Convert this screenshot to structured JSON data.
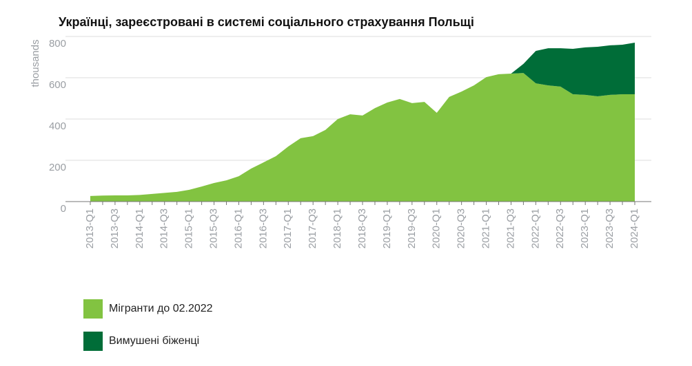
{
  "chart_data": {
    "type": "stacked_area",
    "title": "Українці, зареєстровані в системі соціального страхування Польщі",
    "y_label": "thousands",
    "categories": [
      "2013-Q1",
      null,
      "2013-Q3",
      null,
      "2014-Q1",
      null,
      "2014-Q3",
      null,
      "2015-Q1",
      null,
      "2015-Q3",
      null,
      "2016-Q1",
      null,
      "2016-Q3",
      null,
      "2017-Q1",
      null,
      "2017-Q3",
      null,
      "2018-Q1",
      null,
      "2018-Q3",
      null,
      "2019-Q1",
      null,
      "2019-Q3",
      null,
      "2020-Q1",
      null,
      "2020-Q3",
      null,
      "2021-Q1",
      null,
      "2021-Q3",
      null,
      "2022-Q1",
      null,
      "2022-Q3",
      null,
      "2023-Q1",
      null,
      "2023-Q3",
      null,
      "2024-Q1"
    ],
    "series": [
      {
        "name": "Мігранти до 02.2022",
        "color": "#82c341",
        "values": [
          27,
          29,
          30,
          30,
          32,
          37,
          42,
          47,
          57,
          73,
          90,
          103,
          123,
          160,
          190,
          220,
          267,
          307,
          317,
          347,
          400,
          423,
          417,
          453,
          480,
          497,
          477,
          483,
          430,
          507,
          533,
          563,
          603,
          617,
          620,
          623,
          573,
          563,
          557,
          520,
          517,
          510,
          517,
          520,
          520
        ]
      },
      {
        "name": "Вимушені біженці",
        "color": "#006d38",
        "values": [
          null,
          null,
          null,
          null,
          null,
          null,
          null,
          null,
          null,
          null,
          null,
          null,
          null,
          null,
          null,
          null,
          null,
          null,
          null,
          null,
          null,
          null,
          null,
          null,
          null,
          null,
          null,
          null,
          null,
          null,
          null,
          null,
          null,
          null,
          0,
          44,
          157,
          180,
          186,
          220,
          230,
          240,
          240,
          240,
          250
        ]
      }
    ],
    "ylim": [
      0,
      800
    ],
    "yticks": [
      0,
      200,
      400,
      600,
      800
    ],
    "grid": true
  }
}
